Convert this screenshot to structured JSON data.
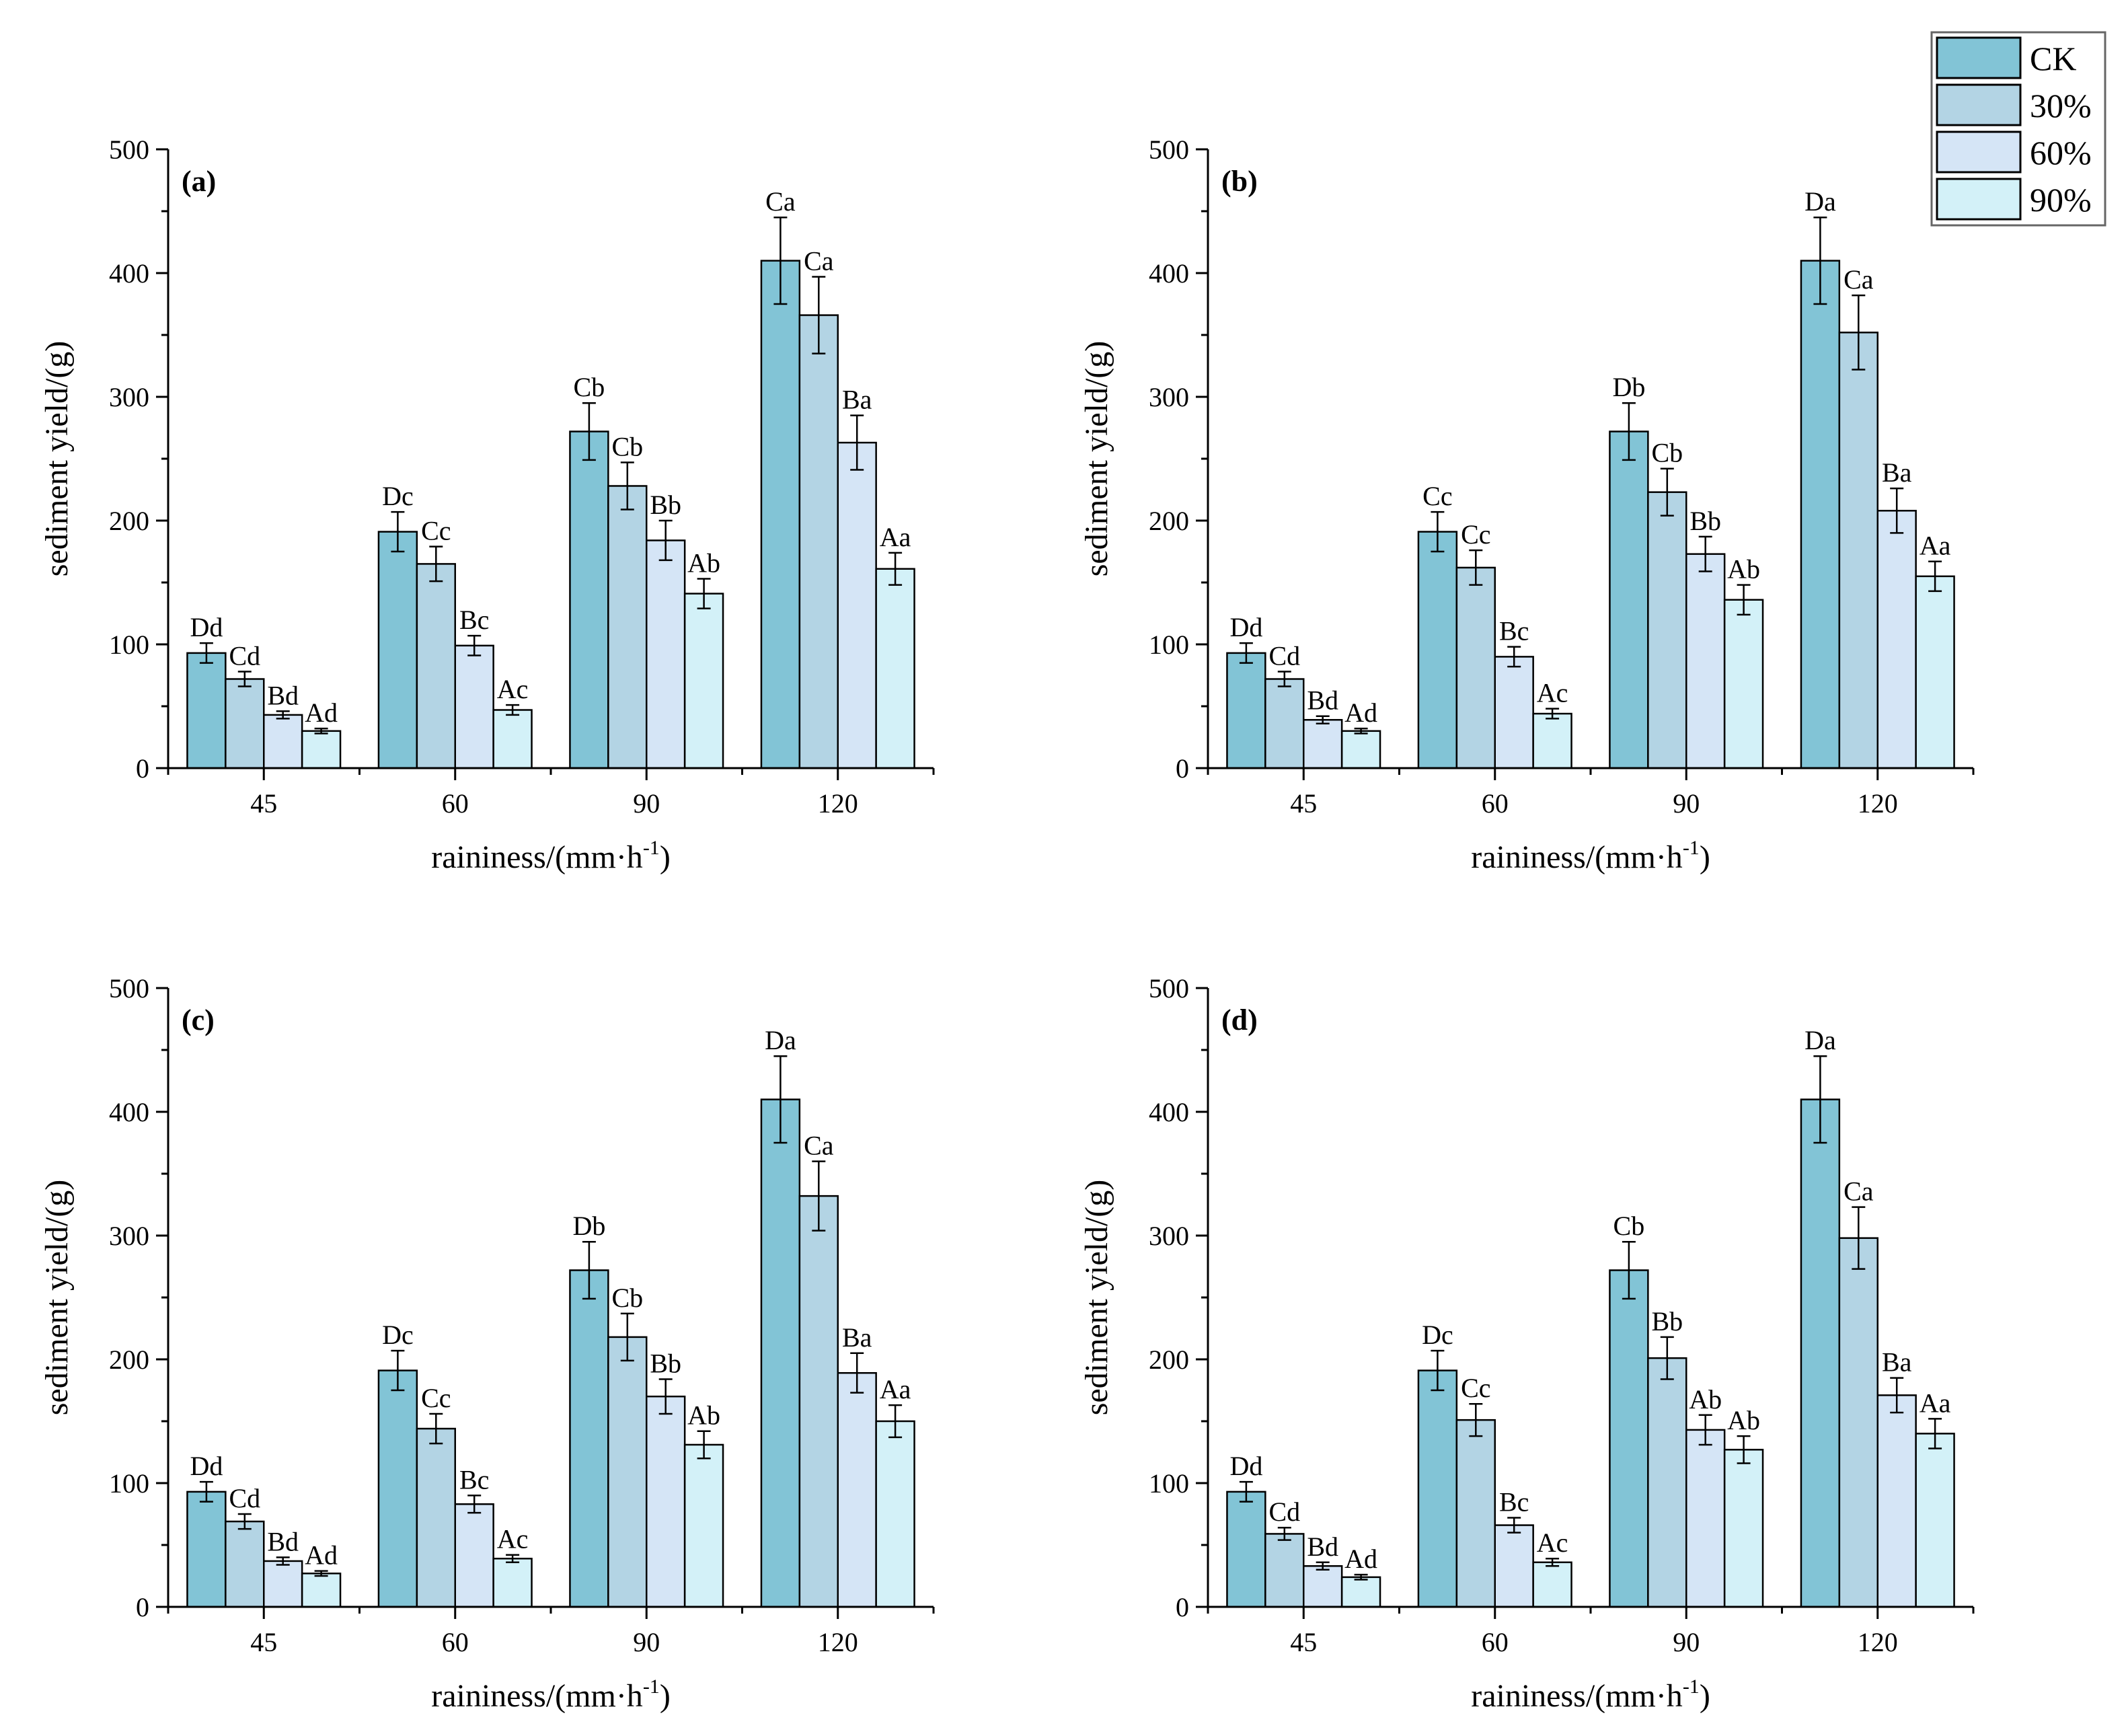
{
  "legend": {
    "items": [
      {
        "label": "CK",
        "color": "#82c4d6"
      },
      {
        "label": "30%",
        "color": "#b3d4e4"
      },
      {
        "label": "60%",
        "color": "#d5e5f6"
      },
      {
        "label": "90%",
        "color": "#d3f1f8"
      }
    ]
  },
  "chart_data": [
    {
      "type": "bar",
      "panel_label": "(a)",
      "xlabel": "raininess/(mm·h",
      "xlabel_sup": "-1",
      "xlabel_end": ")",
      "ylabel": "sediment yield/(g)",
      "ylim": [
        0,
        500
      ],
      "yticks": [
        "0",
        "100",
        "200",
        "300",
        "400",
        "500"
      ],
      "categories": [
        "45",
        "60",
        "90",
        "120"
      ],
      "series": [
        {
          "name": "CK",
          "values": [
            93,
            191,
            272,
            410
          ],
          "errors": [
            8,
            16,
            23,
            35
          ],
          "labels": [
            "Dd",
            "Dc",
            "Cb",
            "Ca"
          ]
        },
        {
          "name": "30%",
          "values": [
            72,
            165,
            228,
            366
          ],
          "errors": [
            6,
            14,
            19,
            31
          ],
          "labels": [
            "Cd",
            "Cc",
            "Cb",
            "Ca"
          ]
        },
        {
          "name": "60%",
          "values": [
            43,
            99,
            184,
            263
          ],
          "errors": [
            3,
            8,
            16,
            22
          ],
          "labels": [
            "Bd",
            "Bc",
            "Bb",
            "Ba"
          ]
        },
        {
          "name": "90%",
          "values": [
            30,
            47,
            141,
            161
          ],
          "errors": [
            2,
            4,
            12,
            13
          ],
          "labels": [
            "Ad",
            "Ac",
            "Ab",
            "Aa"
          ]
        }
      ]
    },
    {
      "type": "bar",
      "panel_label": "(b)",
      "xlabel": "raininess/(mm·h",
      "xlabel_sup": "-1",
      "xlabel_end": ")",
      "ylabel": "sediment yield/(g)",
      "ylim": [
        0,
        500
      ],
      "yticks": [
        "0",
        "100",
        "200",
        "300",
        "400",
        "500"
      ],
      "categories": [
        "45",
        "60",
        "90",
        "120"
      ],
      "series": [
        {
          "name": "CK",
          "values": [
            93,
            191,
            272,
            410
          ],
          "errors": [
            8,
            16,
            23,
            35
          ],
          "labels": [
            "Dd",
            "Cc",
            "Db",
            "Da"
          ]
        },
        {
          "name": "30%",
          "values": [
            72,
            162,
            223,
            352
          ],
          "errors": [
            6,
            14,
            19,
            30
          ],
          "labels": [
            "Cd",
            "Cc",
            "Cb",
            "Ca"
          ]
        },
        {
          "name": "60%",
          "values": [
            39,
            90,
            173,
            208
          ],
          "errors": [
            3,
            8,
            14,
            18
          ],
          "labels": [
            "Bd",
            "Bc",
            "Bb",
            "Ba"
          ]
        },
        {
          "name": "90%",
          "values": [
            30,
            44,
            136,
            155
          ],
          "errors": [
            2,
            4,
            12,
            12
          ],
          "labels": [
            "Ad",
            "Ac",
            "Ab",
            "Aa"
          ]
        }
      ]
    },
    {
      "type": "bar",
      "panel_label": "(c)",
      "xlabel": "raininess/(mm·h",
      "xlabel_sup": "-1",
      "xlabel_end": ")",
      "ylabel": "sediment yield/(g)",
      "ylim": [
        0,
        500
      ],
      "yticks": [
        "0",
        "100",
        "200",
        "300",
        "400",
        "500"
      ],
      "categories": [
        "45",
        "60",
        "90",
        "120"
      ],
      "series": [
        {
          "name": "CK",
          "values": [
            93,
            191,
            272,
            410
          ],
          "errors": [
            8,
            16,
            23,
            35
          ],
          "labels": [
            "Dd",
            "Dc",
            "Db",
            "Da"
          ]
        },
        {
          "name": "30%",
          "values": [
            69,
            144,
            218,
            332
          ],
          "errors": [
            6,
            12,
            19,
            28
          ],
          "labels": [
            "Cd",
            "Cc",
            "Cb",
            "Ca"
          ]
        },
        {
          "name": "60%",
          "values": [
            37,
            83,
            170,
            189
          ],
          "errors": [
            3,
            7,
            14,
            16
          ],
          "labels": [
            "Bd",
            "Bc",
            "Bb",
            "Ba"
          ]
        },
        {
          "name": "90%",
          "values": [
            27,
            39,
            131,
            150
          ],
          "errors": [
            2,
            3,
            11,
            13
          ],
          "labels": [
            "Ad",
            "Ac",
            "Ab",
            "Aa"
          ]
        }
      ]
    },
    {
      "type": "bar",
      "panel_label": "(d)",
      "xlabel": "raininess/(mm·h",
      "xlabel_sup": "-1",
      "xlabel_end": ")",
      "ylabel": "sediment yield/(g)",
      "ylim": [
        0,
        500
      ],
      "yticks": [
        "0",
        "100",
        "200",
        "300",
        "400",
        "500"
      ],
      "categories": [
        "45",
        "60",
        "90",
        "120"
      ],
      "series": [
        {
          "name": "CK",
          "values": [
            93,
            191,
            272,
            410
          ],
          "errors": [
            8,
            16,
            23,
            35
          ],
          "labels": [
            "Dd",
            "Dc",
            "Cb",
            "Da"
          ]
        },
        {
          "name": "30%",
          "values": [
            59,
            151,
            201,
            298
          ],
          "errors": [
            5,
            13,
            17,
            25
          ],
          "labels": [
            "Cd",
            "Cc",
            "Bb",
            "Ca"
          ]
        },
        {
          "name": "60%",
          "values": [
            33,
            66,
            143,
            171
          ],
          "errors": [
            3,
            6,
            12,
            14
          ],
          "labels": [
            "Bd",
            "Bc",
            "Ab",
            "Ba"
          ]
        },
        {
          "name": "90%",
          "values": [
            24,
            36,
            127,
            140
          ],
          "errors": [
            2,
            3,
            11,
            12
          ],
          "labels": [
            "Ad",
            "Ac",
            "Ab",
            "Aa"
          ]
        }
      ]
    }
  ]
}
